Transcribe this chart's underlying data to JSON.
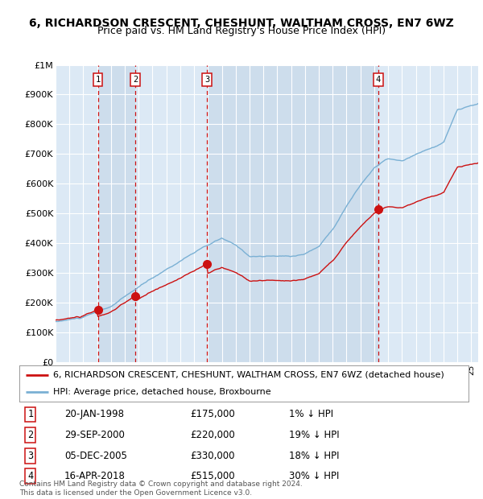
{
  "title": "6, RICHARDSON CRESCENT, CHESHUNT, WALTHAM CROSS, EN7 6WZ",
  "subtitle": "Price paid vs. HM Land Registry's House Price Index (HPI)",
  "ylabel_ticks": [
    "£0",
    "£100K",
    "£200K",
    "£300K",
    "£400K",
    "£500K",
    "£600K",
    "£700K",
    "£800K",
    "£900K",
    "£1M"
  ],
  "ytick_values": [
    0,
    100000,
    200000,
    300000,
    400000,
    500000,
    600000,
    700000,
    800000,
    900000,
    1000000
  ],
  "ylim": [
    0,
    1000000
  ],
  "xlim_start": 1995.0,
  "xlim_end": 2025.5,
  "plot_bg": "#dce9f5",
  "grid_color": "#ffffff",
  "hpi_color": "#7ab0d4",
  "sale_color": "#cc1111",
  "vline_color": "#cc1111",
  "shade_colors": [
    "#c8d8ea",
    "#c8d8ea",
    "#c8d8ea",
    "#c8d8ea"
  ],
  "sale_dates": [
    1998.054,
    2000.747,
    2005.923,
    2018.288
  ],
  "sale_prices": [
    175000,
    220000,
    330000,
    515000
  ],
  "sale_labels": [
    "1",
    "2",
    "3",
    "4"
  ],
  "legend_line1": "6, RICHARDSON CRESCENT, CHESHUNT, WALTHAM CROSS, EN7 6WZ (detached house)",
  "legend_line2": "HPI: Average price, detached house, Broxbourne",
  "table_data": [
    [
      "1",
      "20-JAN-1998",
      "£175,000",
      "1% ↓ HPI"
    ],
    [
      "2",
      "29-SEP-2000",
      "£220,000",
      "19% ↓ HPI"
    ],
    [
      "3",
      "05-DEC-2005",
      "£330,000",
      "18% ↓ HPI"
    ],
    [
      "4",
      "16-APR-2018",
      "£515,000",
      "30% ↓ HPI"
    ]
  ],
  "footer": "Contains HM Land Registry data © Crown copyright and database right 2024.\nThis data is licensed under the Open Government Licence v3.0.",
  "title_fontsize": 10,
  "subtitle_fontsize": 9,
  "tick_fontsize": 8
}
